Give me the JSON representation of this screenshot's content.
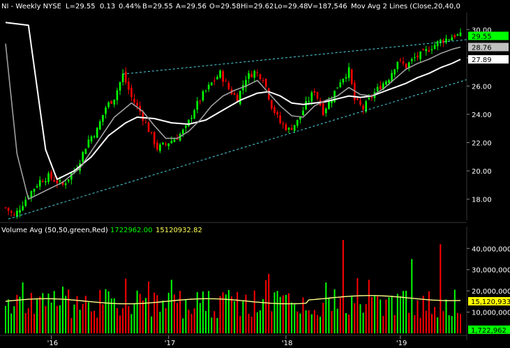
{
  "chart_data": [
    {
      "type": "candlestick",
      "header": {
        "symbol": "NI - Weekly  NYSE",
        "last": "L=29.55",
        "change": "0.13",
        "change_pct": "0.44%",
        "bid": "B=29.55",
        "ask": "A=29.56",
        "open": "O=29.58",
        "high": "Hi=29.62",
        "low": "Lo=29.48",
        "volume": "V=187,546",
        "mov_avg": "Mov Avg 2 Lines (Close,20,40,0"
      },
      "ylim": [
        16.5,
        31.2
      ],
      "yticks": [
        "30.00",
        "28.00",
        "26.00",
        "24.00",
        "22.00",
        "20.00",
        "18.00"
      ],
      "ytick_values": [
        30,
        28,
        26,
        24,
        22,
        20,
        18
      ],
      "price_labels": [
        {
          "text": "29.55",
          "value": 29.55,
          "bg": "#00ff00",
          "fg": "#000000"
        },
        {
          "text": "28.76",
          "value": 28.76,
          "bg": "#c0c0c0",
          "fg": "#000000"
        },
        {
          "text": "27.89",
          "value": 27.89,
          "bg": "#ffffff",
          "fg": "#000000"
        }
      ],
      "close_path": [
        [
          0,
          17.4
        ],
        [
          3,
          16.8
        ],
        [
          8,
          18.3
        ],
        [
          12,
          19.3
        ],
        [
          15,
          19.6
        ],
        [
          20,
          19.0
        ],
        [
          25,
          20.3
        ],
        [
          29,
          22.2
        ],
        [
          32,
          22.9
        ],
        [
          35,
          24.5
        ],
        [
          38,
          25.2
        ],
        [
          41,
          26.8
        ],
        [
          44,
          25.2
        ],
        [
          47,
          24.2
        ],
        [
          50,
          22.9
        ],
        [
          53,
          21.6
        ],
        [
          56,
          21.9
        ],
        [
          60,
          22.4
        ],
        [
          63,
          23.0
        ],
        [
          66,
          24.4
        ],
        [
          69,
          25.4
        ],
        [
          72,
          26.2
        ],
        [
          75,
          26.9
        ],
        [
          78,
          25.8
        ],
        [
          81,
          25.1
        ],
        [
          84,
          26.6
        ],
        [
          87,
          27.0
        ],
        [
          90,
          26.6
        ],
        [
          93,
          24.6
        ],
        [
          96,
          23.4
        ],
        [
          99,
          22.9
        ],
        [
          102,
          23.5
        ],
        [
          105,
          24.7
        ],
        [
          108,
          25.7
        ],
        [
          111,
          24.2
        ],
        [
          114,
          25.2
        ],
        [
          117,
          26.4
        ],
        [
          120,
          27.1
        ],
        [
          122,
          25.0
        ],
        [
          125,
          24.4
        ],
        [
          128,
          25.3
        ],
        [
          131,
          26.0
        ],
        [
          134,
          26.6
        ],
        [
          137,
          27.8
        ],
        [
          140,
          27.4
        ],
        [
          143,
          28.0
        ],
        [
          146,
          28.3
        ],
        [
          149,
          28.8
        ],
        [
          152,
          29.2
        ],
        [
          155,
          29.4
        ],
        [
          157,
          29.6
        ],
        [
          159,
          29.55
        ]
      ],
      "ma20_path": [
        [
          0,
          29.0
        ],
        [
          4,
          21.2
        ],
        [
          8,
          18.0
        ],
        [
          14,
          18.6
        ],
        [
          20,
          19.2
        ],
        [
          26,
          20.2
        ],
        [
          32,
          22.0
        ],
        [
          38,
          23.8
        ],
        [
          44,
          24.8
        ],
        [
          48,
          24.2
        ],
        [
          52,
          23.2
        ],
        [
          56,
          22.3
        ],
        [
          60,
          22.3
        ],
        [
          64,
          22.8
        ],
        [
          68,
          23.6
        ],
        [
          72,
          24.6
        ],
        [
          76,
          25.3
        ],
        [
          80,
          25.7
        ],
        [
          84,
          26.0
        ],
        [
          88,
          26.4
        ],
        [
          92,
          25.5
        ],
        [
          96,
          24.6
        ],
        [
          100,
          23.9
        ],
        [
          104,
          23.8
        ],
        [
          108,
          24.6
        ],
        [
          112,
          25.0
        ],
        [
          116,
          25.3
        ],
        [
          120,
          25.9
        ],
        [
          124,
          25.4
        ],
        [
          128,
          25.3
        ],
        [
          132,
          25.8
        ],
        [
          136,
          26.5
        ],
        [
          140,
          27.2
        ],
        [
          144,
          27.6
        ],
        [
          148,
          27.9
        ],
        [
          152,
          28.3
        ],
        [
          156,
          28.6
        ],
        [
          159,
          28.76
        ]
      ],
      "ma40_path": [
        [
          0,
          30.5
        ],
        [
          8,
          30.3
        ],
        [
          14,
          21.5
        ],
        [
          18,
          19.4
        ],
        [
          24,
          20.0
        ],
        [
          30,
          21.0
        ],
        [
          36,
          22.5
        ],
        [
          42,
          23.4
        ],
        [
          46,
          23.8
        ],
        [
          52,
          23.7
        ],
        [
          58,
          23.4
        ],
        [
          64,
          23.3
        ],
        [
          70,
          23.6
        ],
        [
          76,
          24.3
        ],
        [
          82,
          25.0
        ],
        [
          88,
          25.5
        ],
        [
          92,
          25.6
        ],
        [
          96,
          25.3
        ],
        [
          100,
          24.8
        ],
        [
          104,
          24.7
        ],
        [
          108,
          24.8
        ],
        [
          112,
          24.9
        ],
        [
          116,
          25.1
        ],
        [
          120,
          25.3
        ],
        [
          124,
          25.2
        ],
        [
          128,
          25.3
        ],
        [
          132,
          25.6
        ],
        [
          136,
          25.9
        ],
        [
          140,
          26.2
        ],
        [
          144,
          26.6
        ],
        [
          148,
          26.9
        ],
        [
          152,
          27.3
        ],
        [
          156,
          27.6
        ],
        [
          159,
          27.89
        ]
      ],
      "trendlines": [
        {
          "style": "dashed",
          "color": "#4fd7e4",
          "from": [
            41,
            26.85
          ],
          "to": [
            162,
            29.3
          ]
        },
        {
          "style": "dashed",
          "color": "#4fd7e4",
          "from": [
            1,
            16.6
          ],
          "to": [
            162,
            26.5
          ]
        }
      ],
      "n_bars": 160
    },
    {
      "type": "bar",
      "title": "Volume Avg (50,50,green,Red)",
      "values_text": [
        "1722962.00",
        "15120932.82"
      ],
      "ylim": [
        0,
        46000000
      ],
      "yticks": [
        "40,000,000",
        "30,000,000",
        "20,000,000",
        "10,000,000"
      ],
      "ytick_values": [
        40000000,
        30000000,
        20000000,
        10000000
      ],
      "avg_value": 15120933,
      "value_labels": [
        {
          "text": "15,120,933",
          "value": 15120933,
          "bg": "#ffff00",
          "fg": "#000000"
        },
        {
          "text": "1,722,962",
          "value": 1722962,
          "bg": "#00ff00",
          "fg": "#000000"
        }
      ]
    }
  ],
  "x_axis": {
    "labels": [
      {
        "text": "'16",
        "bar": 16
      },
      {
        "text": "'17",
        "bar": 57
      },
      {
        "text": "'18",
        "bar": 98
      },
      {
        "text": "'19",
        "bar": 138
      }
    ]
  },
  "colors": {
    "up": "#00ff00",
    "down": "#ff0000",
    "ma20": "#a0a0a0",
    "ma40": "#ffffff",
    "avg": "#ffff88",
    "grid_text": "#ffffff"
  }
}
